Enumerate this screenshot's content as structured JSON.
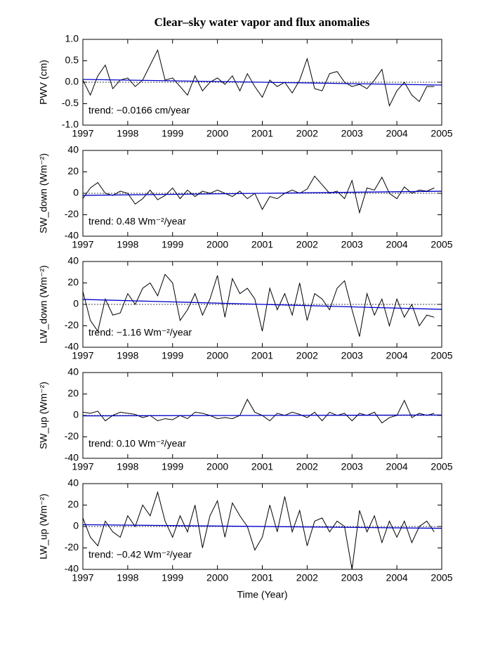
{
  "title": "Clear–sky water vapor and flux anomalies",
  "chart_data": [
    {
      "type": "line",
      "ylabel": "PWV (cm)",
      "annotation": "trend: −0.0166 cm/year",
      "xlim": [
        1997,
        2005
      ],
      "xticks": [
        1997,
        1998,
        1999,
        2000,
        2001,
        2002,
        2003,
        2004,
        2005
      ],
      "ylim": [
        -1,
        1
      ],
      "yticks": [
        {
          "value": 1,
          "label": "1.0"
        },
        0.5,
        {
          "value": 0,
          "label": "0.0"
        },
        -0.5,
        {
          "value": -1,
          "label": "-1.0"
        }
      ],
      "x": [
        1997,
        1997.167,
        1997.333,
        1997.5,
        1997.667,
        1997.833,
        1998,
        1998.167,
        1998.333,
        1998.5,
        1998.667,
        1998.833,
        1999,
        1999.167,
        1999.333,
        1999.5,
        1999.667,
        1999.833,
        2000,
        2000.167,
        2000.333,
        2000.5,
        2000.667,
        2000.833,
        2001,
        2001.167,
        2001.333,
        2001.5,
        2001.667,
        2001.833,
        2002,
        2002.167,
        2002.333,
        2002.5,
        2002.667,
        2002.833,
        2003,
        2003.167,
        2003.333,
        2003.5,
        2003.667,
        2003.833,
        2004,
        2004.167,
        2004.333,
        2004.5,
        2004.667,
        2004.833
      ],
      "series": [
        {
          "color": "#000000",
          "values": [
            0.05,
            -0.3,
            0.15,
            0.4,
            -0.15,
            0.05,
            0.1,
            -0.1,
            0.05,
            0.4,
            0.75,
            0.05,
            0.1,
            -0.1,
            -0.3,
            0.15,
            -0.2,
            0.0,
            0.1,
            -0.05,
            0.15,
            -0.2,
            0.2,
            -0.1,
            -0.35,
            0.05,
            -0.1,
            0.0,
            -0.25,
            0.05,
            0.55,
            -0.15,
            -0.2,
            0.2,
            0.25,
            0.0,
            -0.1,
            -0.05,
            -0.15,
            0.05,
            0.3,
            -0.55,
            -0.2,
            0.0,
            -0.3,
            -0.45,
            -0.1,
            -0.1
          ]
        },
        {
          "color": "#0000cc",
          "x": [
            1997,
            2005
          ],
          "values": [
            0.066,
            -0.066
          ]
        }
      ]
    },
    {
      "type": "line",
      "ylabel": "SW_down (Wm⁻²)",
      "annotation": "trend: 0.48 Wm⁻²/year",
      "xlim": [
        1997,
        2005
      ],
      "xticks": [
        1997,
        1998,
        1999,
        2000,
        2001,
        2002,
        2003,
        2004,
        2005
      ],
      "ylim": [
        -40,
        40
      ],
      "yticks": [
        40,
        20,
        0,
        -20,
        -40
      ],
      "x": [
        1997,
        1997.167,
        1997.333,
        1997.5,
        1997.667,
        1997.833,
        1998,
        1998.167,
        1998.333,
        1998.5,
        1998.667,
        1998.833,
        1999,
        1999.167,
        1999.333,
        1999.5,
        1999.667,
        1999.833,
        2000,
        2000.167,
        2000.333,
        2000.5,
        2000.667,
        2000.833,
        2001,
        2001.167,
        2001.333,
        2001.5,
        2001.667,
        2001.833,
        2002,
        2002.167,
        2002.333,
        2002.5,
        2002.667,
        2002.833,
        2003,
        2003.167,
        2003.333,
        2003.5,
        2003.667,
        2003.833,
        2004,
        2004.167,
        2004.333,
        2004.5,
        2004.667,
        2004.833
      ],
      "series": [
        {
          "color": "#000000",
          "values": [
            -5,
            5,
            10,
            0,
            -2,
            2,
            0,
            -10,
            -5,
            3,
            -6,
            -2,
            5,
            -5,
            3,
            -3,
            2,
            0,
            3,
            0,
            -3,
            2,
            -5,
            0,
            -15,
            -3,
            -5,
            0,
            3,
            0,
            4,
            16,
            8,
            0,
            2,
            -5,
            12,
            -18,
            5,
            3,
            15,
            0,
            -5,
            6,
            0,
            3,
            2,
            5
          ]
        },
        {
          "color": "#0000cc",
          "x": [
            1997,
            2005
          ],
          "values": [
            -1.92,
            1.92
          ]
        }
      ]
    },
    {
      "type": "line",
      "ylabel": "LW_down (Wm⁻²)",
      "annotation": "trend: −1.16 Wm⁻²/year",
      "xlim": [
        1997,
        2005
      ],
      "xticks": [
        1997,
        1998,
        1999,
        2000,
        2001,
        2002,
        2003,
        2004,
        2005
      ],
      "ylim": [
        -40,
        40
      ],
      "yticks": [
        40,
        20,
        0,
        -20,
        -40
      ],
      "x": [
        1997,
        1997.167,
        1997.333,
        1997.5,
        1997.667,
        1997.833,
        1998,
        1998.167,
        1998.333,
        1998.5,
        1998.667,
        1998.833,
        1999,
        1999.167,
        1999.333,
        1999.5,
        1999.667,
        1999.833,
        2000,
        2000.167,
        2000.333,
        2000.5,
        2000.667,
        2000.833,
        2001,
        2001.167,
        2001.333,
        2001.5,
        2001.667,
        2001.833,
        2002,
        2002.167,
        2002.333,
        2002.5,
        2002.667,
        2002.833,
        2003,
        2003.167,
        2003.333,
        2003.5,
        2003.667,
        2003.833,
        2004,
        2004.167,
        2004.333,
        2004.5,
        2004.667,
        2004.833
      ],
      "series": [
        {
          "color": "#000000",
          "values": [
            12,
            -15,
            -25,
            5,
            -10,
            -8,
            10,
            0,
            15,
            20,
            8,
            28,
            20,
            -15,
            -5,
            10,
            -10,
            5,
            27,
            -12,
            24,
            10,
            15,
            5,
            -25,
            15,
            -5,
            10,
            -10,
            20,
            -15,
            10,
            5,
            -5,
            15,
            22,
            -5,
            -30,
            10,
            -10,
            5,
            -20,
            5,
            -12,
            0,
            -20,
            -10,
            -12
          ]
        },
        {
          "color": "#0000cc",
          "x": [
            1997,
            2005
          ],
          "values": [
            4.64,
            -4.64
          ]
        }
      ]
    },
    {
      "type": "line",
      "ylabel": "SW_up (Wm⁻²)",
      "annotation": "trend: 0.10 Wm⁻²/year",
      "xlim": [
        1997,
        2005
      ],
      "xticks": [
        1997,
        1998,
        1999,
        2000,
        2001,
        2002,
        2003,
        2004,
        2005
      ],
      "ylim": [
        -40,
        40
      ],
      "yticks": [
        40,
        20,
        0,
        -20,
        -40
      ],
      "x": [
        1997,
        1997.167,
        1997.333,
        1997.5,
        1997.667,
        1997.833,
        1998,
        1998.167,
        1998.333,
        1998.5,
        1998.667,
        1998.833,
        1999,
        1999.167,
        1999.333,
        1999.5,
        1999.667,
        1999.833,
        2000,
        2000.167,
        2000.333,
        2000.5,
        2000.667,
        2000.833,
        2001,
        2001.167,
        2001.333,
        2001.5,
        2001.667,
        2001.833,
        2002,
        2002.167,
        2002.333,
        2002.5,
        2002.667,
        2002.833,
        2003,
        2003.167,
        2003.333,
        2003.5,
        2003.667,
        2003.833,
        2004,
        2004.167,
        2004.333,
        2004.5,
        2004.667,
        2004.833
      ],
      "series": [
        {
          "color": "#000000",
          "values": [
            3,
            2,
            4,
            -5,
            0,
            3,
            2,
            1,
            -2,
            0,
            -5,
            -3,
            -4,
            0,
            -3,
            3,
            2,
            0,
            -3,
            -2,
            -3,
            0,
            15,
            3,
            0,
            -5,
            2,
            0,
            3,
            1,
            -2,
            3,
            -5,
            3,
            0,
            2,
            -5,
            2,
            0,
            3,
            -7,
            -2,
            0,
            14,
            -2,
            2,
            0,
            2
          ]
        },
        {
          "color": "#0000cc",
          "x": [
            1997,
            2005
          ],
          "values": [
            -0.4,
            0.4
          ]
        }
      ]
    },
    {
      "type": "line",
      "ylabel": "LW_up (Wm⁻²)",
      "annotation": "trend: −0.42 Wm⁻²/year",
      "xlabel": "Time (Year)",
      "xlim": [
        1997,
        2005
      ],
      "xticks": [
        1997,
        1998,
        1999,
        2000,
        2001,
        2002,
        2003,
        2004,
        2005
      ],
      "ylim": [
        -40,
        40
      ],
      "yticks": [
        40,
        20,
        0,
        -20,
        -40
      ],
      "x": [
        1997,
        1997.167,
        1997.333,
        1997.5,
        1997.667,
        1997.833,
        1998,
        1998.167,
        1998.333,
        1998.5,
        1998.667,
        1998.833,
        1999,
        1999.167,
        1999.333,
        1999.5,
        1999.667,
        1999.833,
        2000,
        2000.167,
        2000.333,
        2000.5,
        2000.667,
        2000.833,
        2001,
        2001.167,
        2001.333,
        2001.5,
        2001.667,
        2001.833,
        2002,
        2002.167,
        2002.333,
        2002.5,
        2002.667,
        2002.833,
        2003,
        2003.167,
        2003.333,
        2003.5,
        2003.667,
        2003.833,
        2004,
        2004.167,
        2004.333,
        2004.5,
        2004.667,
        2004.833
      ],
      "series": [
        {
          "color": "#000000",
          "values": [
            8,
            -10,
            -18,
            5,
            -5,
            -10,
            10,
            0,
            20,
            10,
            32,
            5,
            -10,
            10,
            -5,
            20,
            -20,
            10,
            24,
            -10,
            22,
            10,
            0,
            -22,
            -10,
            20,
            -5,
            28,
            -5,
            15,
            -18,
            5,
            8,
            -5,
            5,
            0,
            -40,
            15,
            -5,
            10,
            -15,
            5,
            -10,
            5,
            -15,
            0,
            5,
            -5
          ]
        },
        {
          "color": "#0000cc",
          "x": [
            1997,
            2005
          ],
          "values": [
            1.68,
            -1.68
          ]
        }
      ]
    }
  ]
}
